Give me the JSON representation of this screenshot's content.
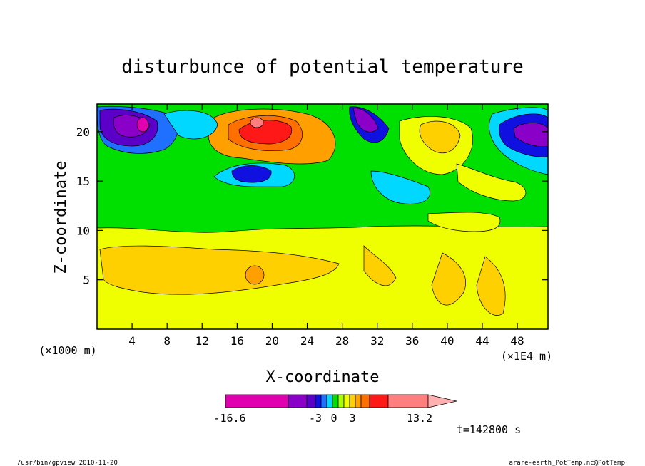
{
  "title": "disturbunce of potential temperature",
  "chart_data": {
    "type": "heatmap",
    "title": "disturbunce of potential temperature",
    "xlabel": "X-coordinate",
    "ylabel": "Z-coordinate",
    "x_units_left": "(×1000 m)",
    "x_units_right": "(×1E4 m)",
    "xlim": [
      0,
      51.5
    ],
    "ylim": [
      0,
      22.8
    ],
    "xticks": [
      "4",
      "8",
      "12",
      "16",
      "20",
      "24",
      "28",
      "32",
      "36",
      "40",
      "44",
      "48"
    ],
    "yticks": [
      "5",
      "10",
      "15",
      "20"
    ],
    "colorbar": {
      "labels": [
        "-16.6",
        "-3",
        "0",
        "3",
        "13.2"
      ],
      "colors": [
        "#e000b0",
        "#8a00c8",
        "#5a00c8",
        "#1010e0",
        "#2070ff",
        "#00d8ff",
        "#00e000",
        "#a8ff00",
        "#f0ff00",
        "#ffd000",
        "#ffa000",
        "#ff7000",
        "#ff1818",
        "#ff7f7f",
        "#ffb0b0"
      ]
    },
    "regions": [
      {
        "level": 1,
        "color": "#00e000",
        "x": [
          0,
          51.5
        ],
        "z": [
          9.5,
          22.8
        ]
      },
      {
        "level": 0,
        "color": "#f0ff00",
        "x": [
          0,
          51.5
        ],
        "z": [
          0,
          9.5
        ]
      },
      {
        "level": 2,
        "color": "#ffd000",
        "x": [
          1,
          27
        ],
        "z": [
          3,
          8.5
        ]
      },
      {
        "level": 4,
        "color": "#ff1818",
        "x": [
          15,
          22
        ],
        "z": [
          18.5,
          22
        ]
      },
      {
        "level": -3,
        "color": "#1010e0",
        "x": [
          15,
          20
        ],
        "z": [
          15,
          17
        ]
      },
      {
        "level": -4,
        "color": "#8a00c8",
        "x": [
          0,
          6
        ],
        "z": [
          18,
          22
        ]
      },
      {
        "level": -4,
        "color": "#8a00c8",
        "x": [
          29,
          31
        ],
        "z": [
          20,
          22
        ]
      },
      {
        "level": -3,
        "color": "#1010e0",
        "x": [
          47,
          51.5
        ],
        "z": [
          17,
          22
        ]
      }
    ]
  },
  "time_label": "t=142800 s",
  "footer_left": "/usr/bin/gpview  2010-11-20",
  "footer_right": "arare-earth_PotTemp.nc@PotTemp"
}
